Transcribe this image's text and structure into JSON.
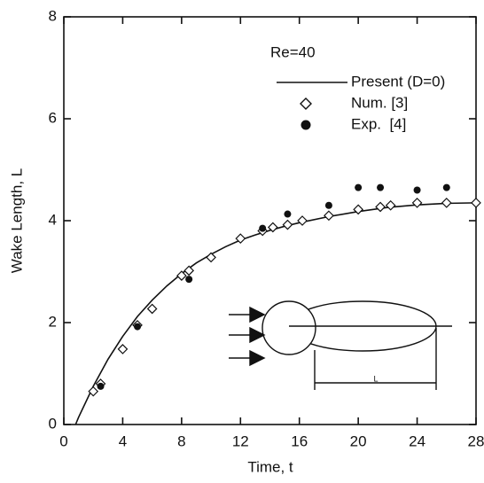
{
  "chart_data": {
    "type": "line",
    "xlabel": "Time, t",
    "ylabel": "Wake Length, L",
    "legend_title": "Re=40",
    "inset_label": "L",
    "xlim": [
      0,
      28
    ],
    "ylim": [
      0,
      8
    ],
    "xticks": [
      0,
      4,
      8,
      12,
      16,
      20,
      24,
      28
    ],
    "yticks": [
      0,
      2,
      4,
      6,
      8
    ],
    "grid": false,
    "legend": "upper right",
    "series": [
      {
        "name": "Present (D=0)",
        "color": "#111111",
        "style": "line",
        "x": [
          0.8,
          1,
          2,
          3,
          4,
          5,
          6,
          7,
          8,
          9,
          10,
          11,
          12,
          13,
          14,
          15,
          16,
          18,
          20,
          22,
          24,
          26,
          28
        ],
        "values": [
          0,
          0.14,
          0.75,
          1.28,
          1.73,
          2.12,
          2.44,
          2.72,
          2.96,
          3.17,
          3.34,
          3.49,
          3.62,
          3.72,
          3.81,
          3.89,
          3.96,
          4.08,
          4.18,
          4.26,
          4.31,
          4.34,
          4.35
        ]
      },
      {
        "name": "Num. [3]",
        "color": "#111111",
        "style": "diamond",
        "x": [
          2,
          2.5,
          4,
          5,
          6,
          8,
          8.5,
          10,
          12,
          13.5,
          14.2,
          15.2,
          16.2,
          18,
          20,
          21.5,
          22.2,
          24,
          26,
          28
        ],
        "values": [
          0.65,
          0.8,
          1.48,
          1.95,
          2.27,
          2.92,
          3.02,
          3.28,
          3.65,
          3.8,
          3.87,
          3.92,
          4.0,
          4.1,
          4.22,
          4.27,
          4.3,
          4.35,
          4.35,
          4.35
        ]
      },
      {
        "name": "Exp.  [4]",
        "color": "#111111",
        "style": "dot",
        "x": [
          2.5,
          5,
          8.5,
          13.5,
          15.2,
          18,
          20,
          21.5,
          24,
          26
        ],
        "values": [
          0.75,
          1.92,
          2.85,
          3.85,
          4.13,
          4.3,
          4.65,
          4.65,
          4.6,
          4.65
        ]
      }
    ]
  }
}
